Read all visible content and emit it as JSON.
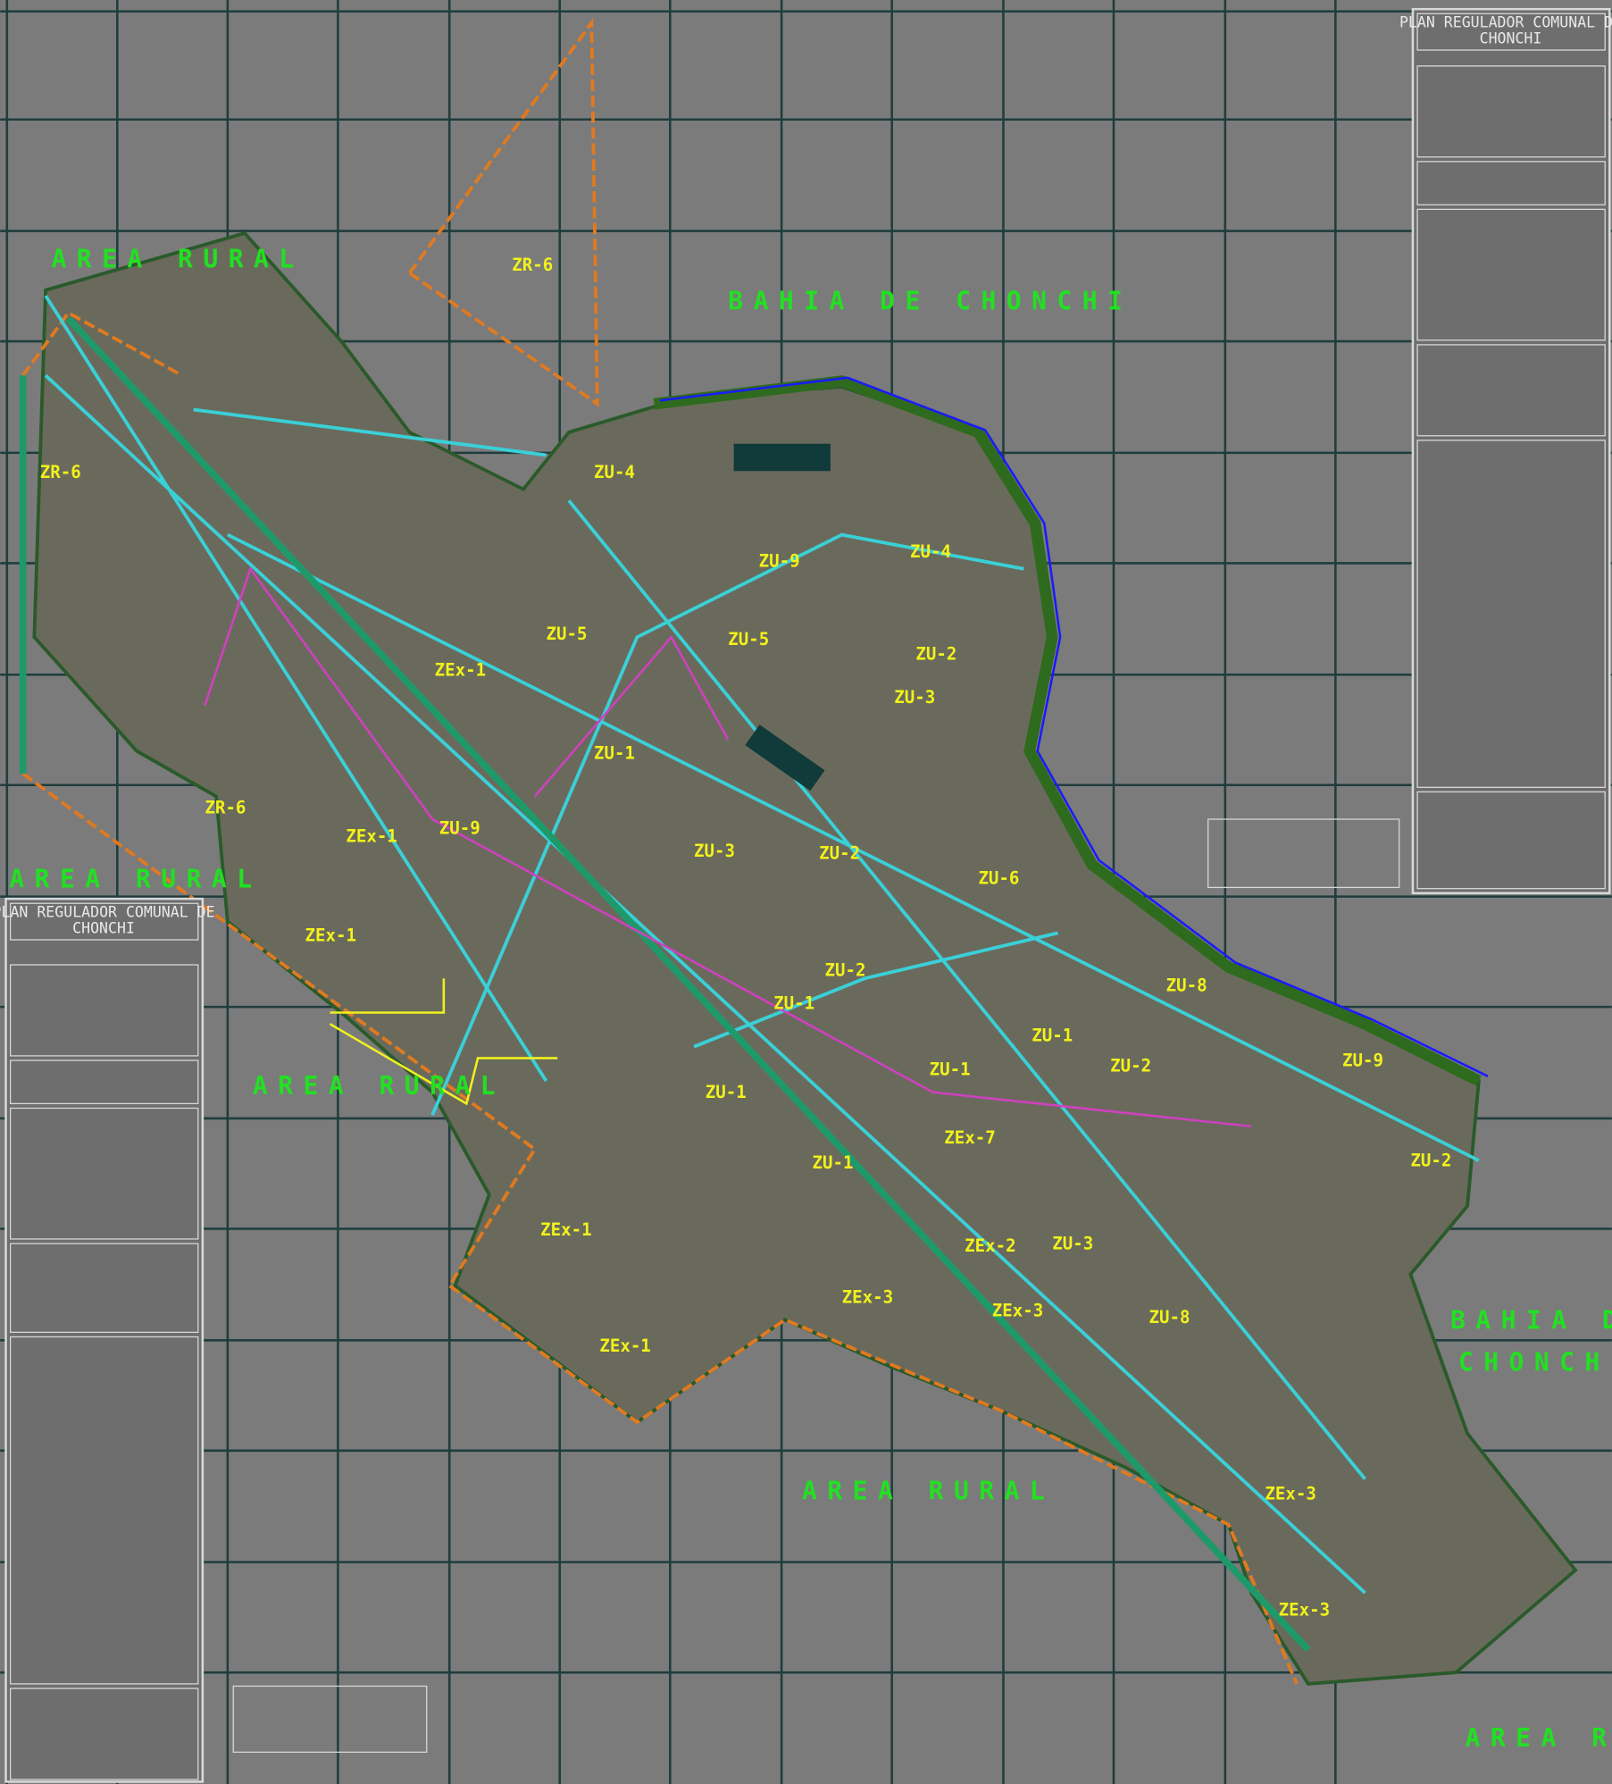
{
  "title_blocks": [
    {
      "title": "PLAN REGULADOR COMUNAL DE",
      "subtitle": "CHONCHI"
    },
    {
      "title": "PLAN REGULADOR COMUNAL DE",
      "subtitle": "CHONCHI"
    }
  ],
  "geo_labels": [
    "BAHIA DE CHONCHI",
    "AREA RURAL",
    "AREA RURAL",
    "AREA RURAL",
    "AREA RURAL",
    "AREA RURAL",
    "BAHIA DE",
    "CHONCHI"
  ],
  "zone_labels": [
    "ZR-6",
    "ZU-4",
    "ZU-9",
    "ZU-4",
    "ZU-5",
    "ZU-5",
    "ZU-2",
    "ZU-3",
    "ZEx-1",
    "ZR-6",
    "ZR-6",
    "ZEx-1",
    "ZU-9",
    "ZU-3",
    "ZU-2",
    "ZU-1",
    "ZEx-1",
    "ZU-2",
    "ZU-1",
    "ZU-6",
    "ZU-8",
    "ZU-2",
    "ZU-9",
    "ZU-1",
    "ZU-1",
    "ZEx-7",
    "ZU-1",
    "ZU-2",
    "ZEx-1",
    "ZEx-2",
    "ZU-3",
    "ZEx-3",
    "ZU-8",
    "ZEx-3",
    "ZEx-1",
    "ZEx-3",
    "ZEx-3",
    "ZU-1"
  ]
}
